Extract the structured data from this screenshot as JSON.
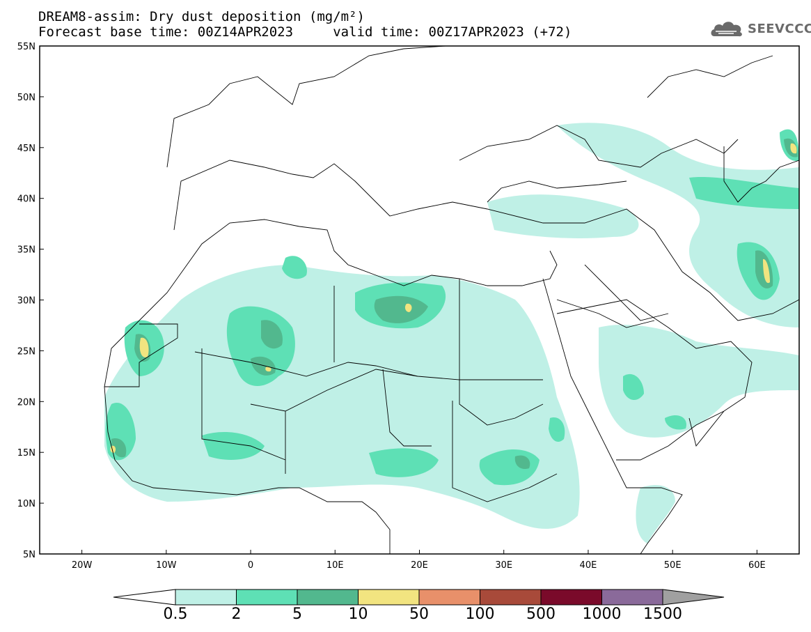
{
  "title": {
    "line1": "DREAM8-assim: Dry dust deposition (mg/m²)",
    "line2": "Forecast base time: 00Z14APR2023     valid time: 00Z17APR2023 (+72)"
  },
  "logo": {
    "icon": "cloud-icon",
    "text": "SEEVCCC"
  },
  "axes": {
    "lat_labels": [
      "55N",
      "50N",
      "45N",
      "40N",
      "35N",
      "30N",
      "25N",
      "20N",
      "15N",
      "10N",
      "5N"
    ],
    "lon_labels": [
      "20W",
      "10W",
      "0",
      "10E",
      "20E",
      "30E",
      "40E",
      "50E",
      "60E"
    ],
    "lat_range": [
      5,
      55
    ],
    "lon_range": [
      -25,
      65
    ]
  },
  "colorbar": {
    "labels": [
      "0.5",
      "2",
      "5",
      "10",
      "50",
      "100",
      "500",
      "1000",
      "1500"
    ],
    "colors": [
      "#bff0e6",
      "#5ee0b5",
      "#52b88e",
      "#f2e480",
      "#e8906a",
      "#a84a3a",
      "#7a0a2a",
      "#8a6a9a"
    ],
    "under_color": "#ffffff",
    "over_color": "#a0a0a0"
  }
}
